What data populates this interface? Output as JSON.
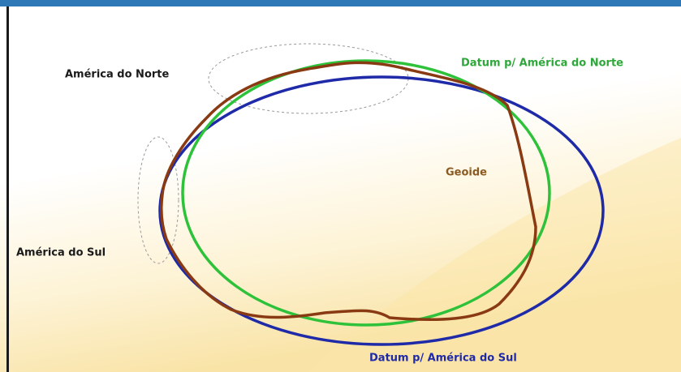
{
  "labels": {
    "north": "América do Norte",
    "datum_north": "Datum p/ América do Norte",
    "geoid": "Geoide",
    "south": "América do Sul",
    "datum_south": "Datum p/ América do Sul"
  }
}
